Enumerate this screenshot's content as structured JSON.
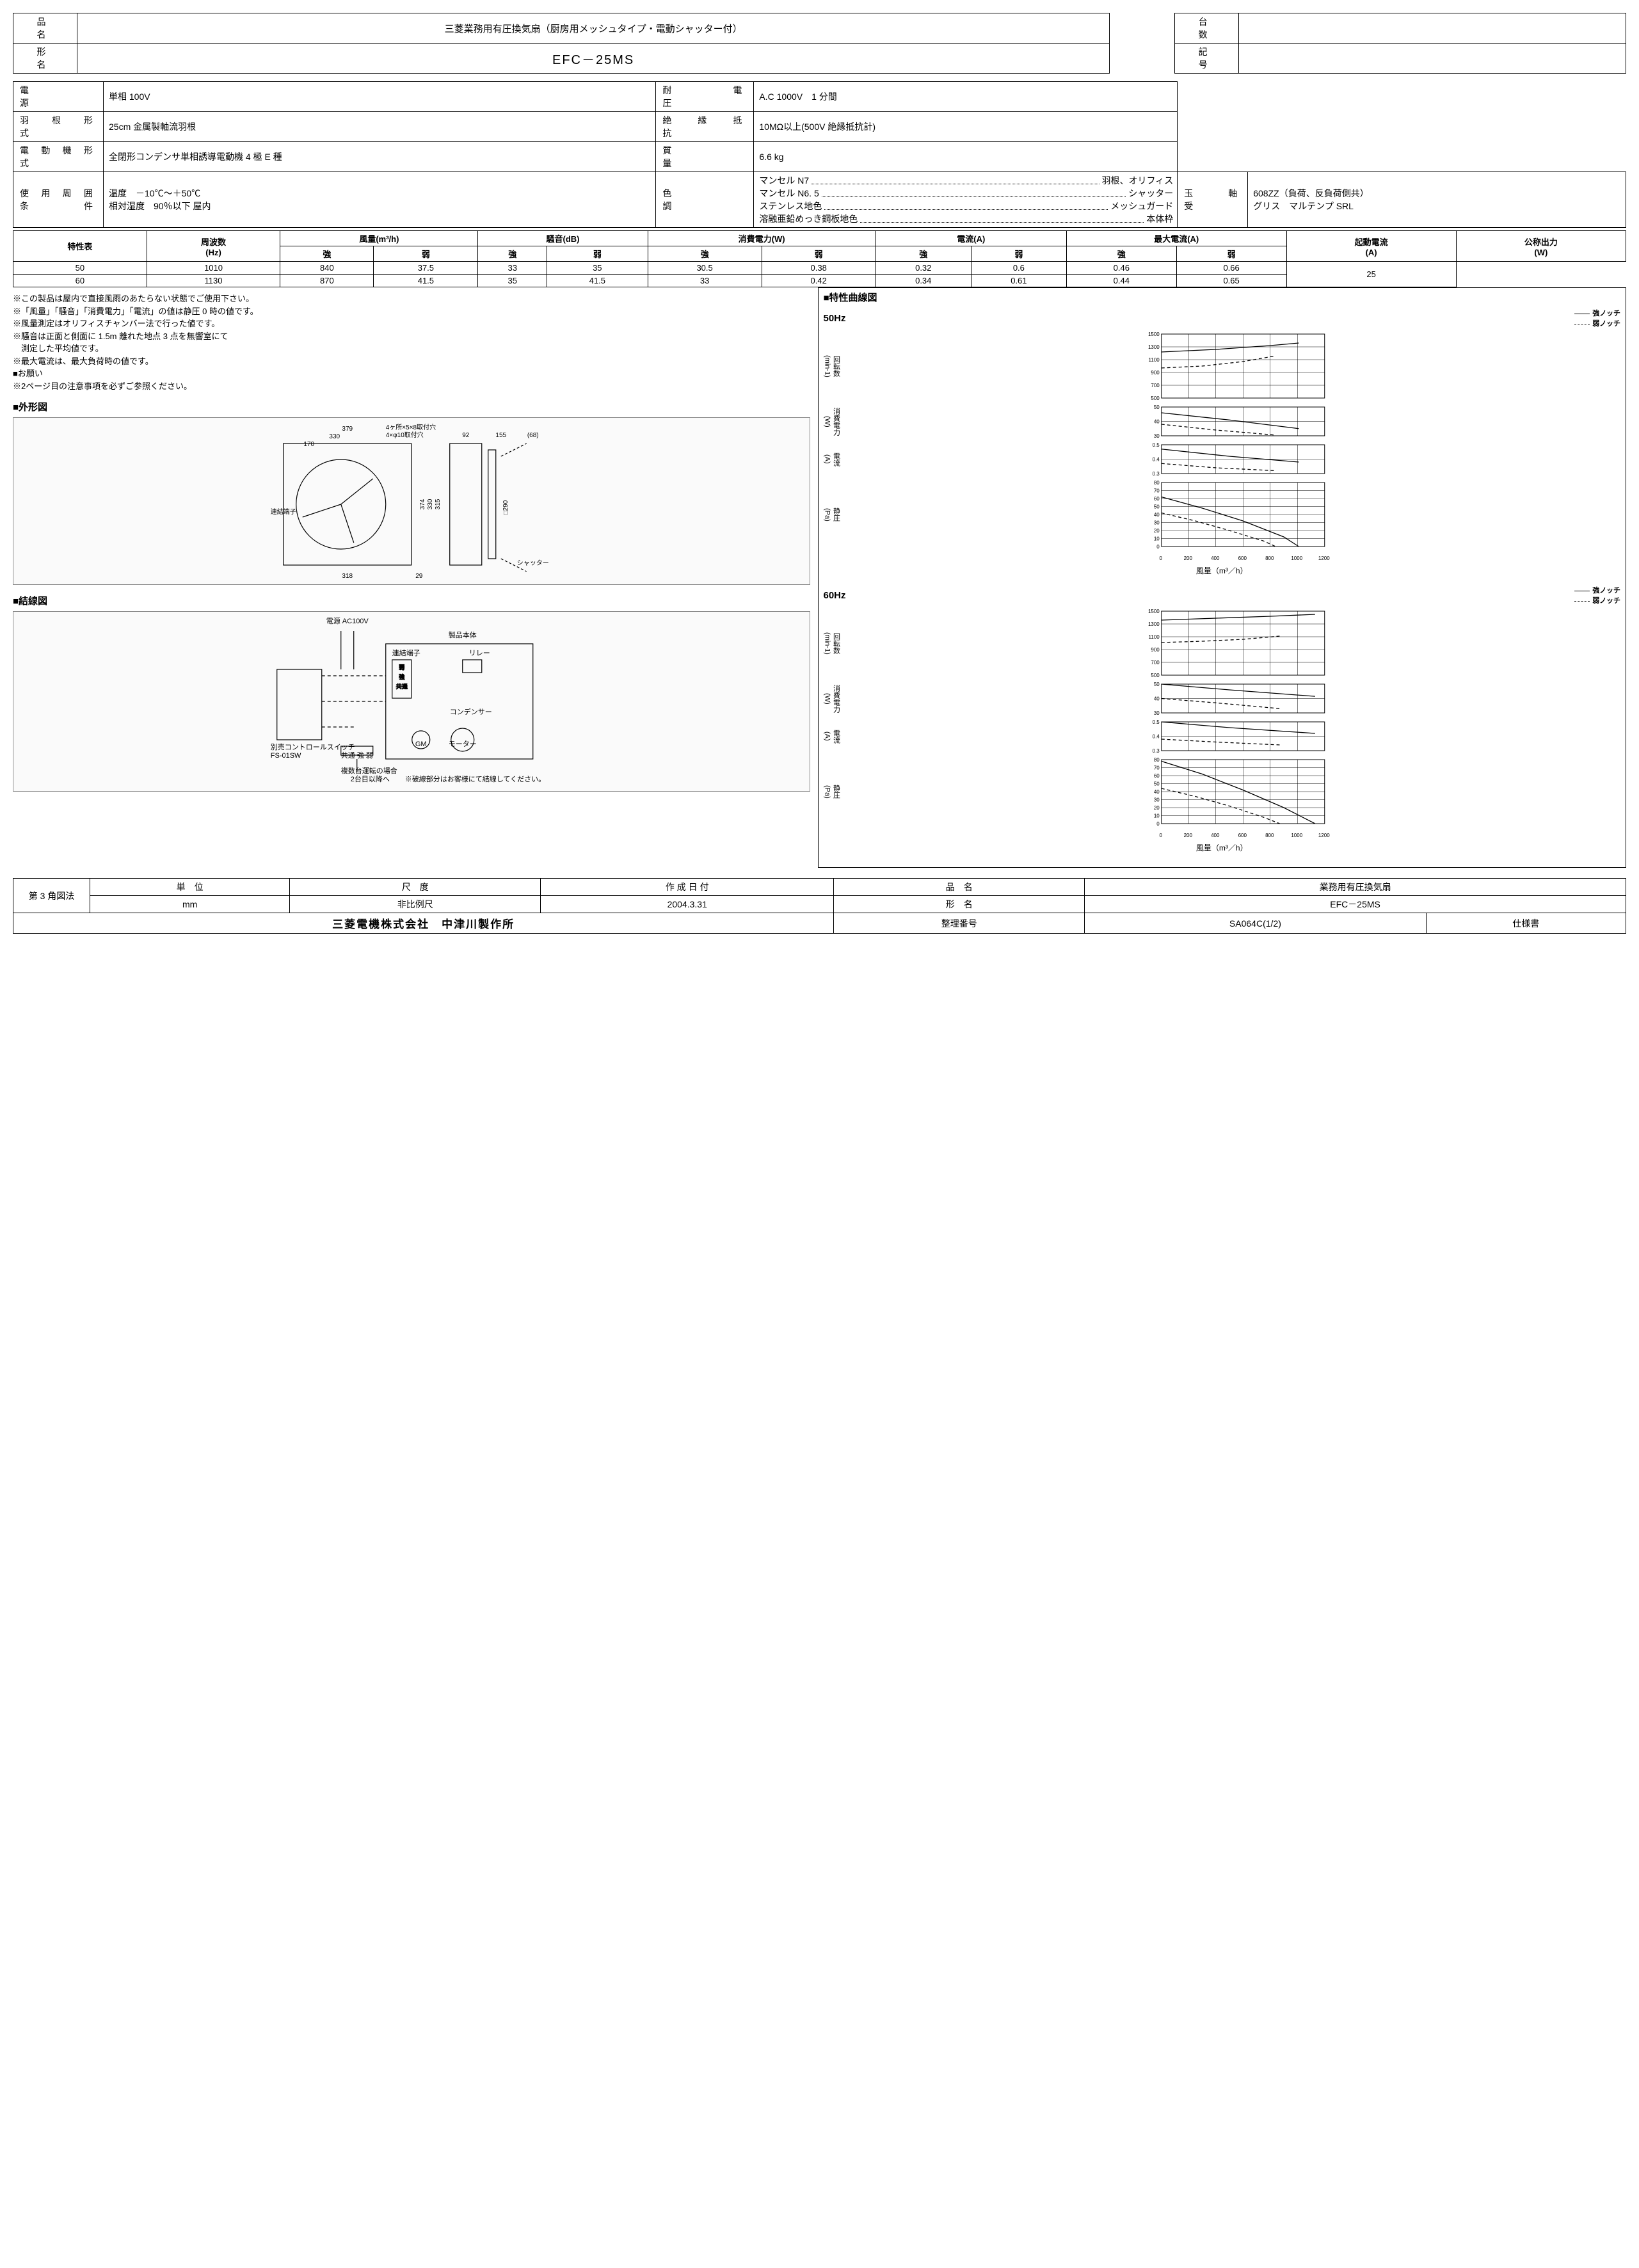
{
  "header": {
    "product_name_label": "品　　名",
    "product_name": "三菱業務用有圧換気扇（厨房用メッシュタイプ・電動シャッター付）",
    "model_label": "形　　名",
    "model": "EFC－25MS",
    "qty_label": "台　　数",
    "qty": "",
    "mark_label": "記　　号",
    "mark": ""
  },
  "specs_left": [
    {
      "k": "電　　　　　源",
      "v": "単相 100V"
    },
    {
      "k": "羽　根　形　式",
      "v": "25cm 金属製軸流羽根"
    },
    {
      "k": "電 動 機 形 式",
      "v": "全閉形コンデンサ単相誘導電動機 4 極 E 種"
    },
    {
      "k": "使 用 周 囲 条 件",
      "v": "温度　－10℃～＋50℃\n相対湿度　90％以下 屋内"
    },
    {
      "k": "玉　軸　　　受",
      "v": "608ZZ（負荷、反負荷側共）\nグリス　マルテンプ SRL"
    }
  ],
  "specs_right": [
    {
      "k": "耐　　電　　圧",
      "v": "A.C 1000V　1 分間"
    },
    {
      "k": "絶　縁　抵　抗",
      "v": "10MΩ以上(500V 絶縁抵抗計)"
    },
    {
      "k": "質　　　　　量",
      "v": "6.6 kg"
    }
  ],
  "color_label": "色　　　　　調",
  "color_lines": [
    {
      "l": "マンセル N7",
      "r": "羽根、オリフィス"
    },
    {
      "l": "マンセル N6. 5",
      "r": "シャッター"
    },
    {
      "l": "ステンレス地色",
      "r": "メッシュガード"
    },
    {
      "l": "溶融亜鉛めっき鋼板地色",
      "r": "本体枠"
    }
  ],
  "perf": {
    "title": "特性表",
    "freq_label": "周波数\n(Hz)",
    "cols": [
      {
        "h": "風量(m³/h)",
        "sub": [
          "強",
          "弱"
        ]
      },
      {
        "h": "騒音(dB)",
        "sub": [
          "強",
          "弱"
        ]
      },
      {
        "h": "消費電力(W)",
        "sub": [
          "強",
          "弱"
        ]
      },
      {
        "h": "電流(A)",
        "sub": [
          "強",
          "弱"
        ]
      },
      {
        "h": "最大電流(A)",
        "sub": [
          "強",
          "弱"
        ]
      }
    ],
    "start_cur_label": "起動電流\n(A)",
    "rated_out_label": "公称出力\n(W)",
    "rows": [
      {
        "hz": "50",
        "vals": [
          "1010",
          "840",
          "37.5",
          "33",
          "35",
          "30.5",
          "0.38",
          "0.32",
          "0.6",
          "0.46"
        ],
        "start": "0.66"
      },
      {
        "hz": "60",
        "vals": [
          "1130",
          "870",
          "41.5",
          "35",
          "41.5",
          "33",
          "0.42",
          "0.34",
          "0.61",
          "0.44"
        ],
        "start": "0.65"
      }
    ],
    "rated_out": "25"
  },
  "notes": [
    "※この製品は屋内で直接風雨のあたらない状態でご使用下さい。",
    "※「風量」「騒音」「消費電力」「電流」の値は静圧 0 時の値です。",
    "※風量測定はオリフィスチャンバー法で行った値です。",
    "※騒音は正面と側面に 1.5m 離れた地点 3 点を無響室にて",
    "　測定した平均値です。",
    "※最大電流は、最大負荷時の値です。",
    "■お願い",
    "※2ページ目の注意事項を必ずご参照ください。"
  ],
  "sections": {
    "outline": "■外形図",
    "wiring": "■結線図",
    "curves": "■特性曲線図"
  },
  "outline_dims": {
    "w_outer": "379",
    "w_330": "330",
    "w_170": "170",
    "w_318": "318",
    "h_374": "374",
    "h_330": "330",
    "h_315": "315",
    "h_29": "29",
    "side_92": "92",
    "side_155": "155",
    "side_68": "(68)",
    "d290": "□290",
    "note1": "4ヶ所×5×8取付穴",
    "note2": "4×φ10取付穴",
    "terminal": "連結端子",
    "shutter": "シャッター"
  },
  "wiring": {
    "power": "電源 AC100V",
    "body": "製品本体",
    "terminal": "連結端子",
    "relay": "リレー",
    "capacitor": "コンデンサー",
    "motor": "モーター",
    "gm": "GM",
    "switch_label": "別売コントロールスイッチ\nFS-01SW",
    "bus": "共通 強 弱",
    "multi": "複数台運転の場合\n2台目以降へ",
    "dashnote": "※破線部分はお客様にて結線してください。",
    "terms": [
      "弱",
      "強",
      "共通"
    ]
  },
  "charts": {
    "legend_strong": "強ノッチ",
    "legend_weak": "弱ノッチ",
    "xaxis": "風量（m³／h）",
    "xlim": [
      0,
      1200
    ],
    "xticks": [
      0,
      200,
      400,
      600,
      800,
      1000,
      1200
    ],
    "groups": [
      {
        "hz": "50Hz",
        "panels": [
          {
            "ylab": "回転数\n(min-1)",
            "ylim": [
              500,
              1500
            ],
            "yticks": [
              500,
              700,
              900,
              1100,
              1300,
              1500
            ],
            "strong": [
              [
                0,
                1220
              ],
              [
                400,
                1260
              ],
              [
                800,
                1320
              ],
              [
                1010,
                1360
              ]
            ],
            "weak": [
              [
                0,
                970
              ],
              [
                300,
                1000
              ],
              [
                600,
                1070
              ],
              [
                840,
                1160
              ]
            ]
          },
          {
            "ylab": "消費電力\n(W)",
            "ylim": [
              30,
              50
            ],
            "yticks": [
              30,
              40,
              50
            ],
            "strong": [
              [
                0,
                46
              ],
              [
                500,
                41
              ],
              [
                1010,
                35
              ]
            ],
            "weak": [
              [
                0,
                38
              ],
              [
                400,
                34
              ],
              [
                840,
                30.5
              ]
            ]
          },
          {
            "ylab": "電流\n(A)",
            "ylim": [
              0.3,
              0.5
            ],
            "yticks": [
              0.3,
              0.4,
              0.5
            ],
            "strong": [
              [
                0,
                0.47
              ],
              [
                500,
                0.42
              ],
              [
                1010,
                0.38
              ]
            ],
            "weak": [
              [
                0,
                0.37
              ],
              [
                400,
                0.34
              ],
              [
                840,
                0.32
              ]
            ]
          },
          {
            "ylab": "静圧\n(Pa)",
            "ylim": [
              0,
              80
            ],
            "yticks": [
              0,
              10,
              20,
              30,
              40,
              50,
              60,
              70,
              80
            ],
            "strong": [
              [
                0,
                62
              ],
              [
                300,
                48
              ],
              [
                600,
                32
              ],
              [
                900,
                12
              ],
              [
                1010,
                0
              ]
            ],
            "weak": [
              [
                0,
                42
              ],
              [
                250,
                32
              ],
              [
                500,
                20
              ],
              [
                750,
                7
              ],
              [
                840,
                0
              ]
            ]
          }
        ]
      },
      {
        "hz": "60Hz",
        "panels": [
          {
            "ylab": "回転数\n(min-1)",
            "ylim": [
              500,
              1500
            ],
            "yticks": [
              500,
              700,
              900,
              1100,
              1300,
              1500
            ],
            "strong": [
              [
                0,
                1360
              ],
              [
                400,
                1390
              ],
              [
                800,
                1420
              ],
              [
                1130,
                1450
              ]
            ],
            "weak": [
              [
                0,
                1010
              ],
              [
                300,
                1030
              ],
              [
                600,
                1060
              ],
              [
                870,
                1110
              ]
            ]
          },
          {
            "ylab": "消費電力\n(W)",
            "ylim": [
              30,
              50
            ],
            "yticks": [
              30,
              40,
              50
            ],
            "strong": [
              [
                0,
                50
              ],
              [
                500,
                46
              ],
              [
                1130,
                41.5
              ]
            ],
            "weak": [
              [
                0,
                40
              ],
              [
                400,
                37
              ],
              [
                870,
                33
              ]
            ]
          },
          {
            "ylab": "電流\n(A)",
            "ylim": [
              0.3,
              0.5
            ],
            "yticks": [
              0.3,
              0.4,
              0.5
            ],
            "strong": [
              [
                0,
                0.5
              ],
              [
                500,
                0.46
              ],
              [
                1130,
                0.42
              ]
            ],
            "weak": [
              [
                0,
                0.38
              ],
              [
                400,
                0.36
              ],
              [
                870,
                0.34
              ]
            ]
          },
          {
            "ylab": "静圧\n(Pa)",
            "ylim": [
              0,
              80
            ],
            "yticks": [
              0,
              10,
              20,
              30,
              40,
              50,
              60,
              70,
              80
            ],
            "strong": [
              [
                0,
                78
              ],
              [
                300,
                62
              ],
              [
                600,
                42
              ],
              [
                900,
                20
              ],
              [
                1130,
                0
              ]
            ],
            "weak": [
              [
                0,
                44
              ],
              [
                250,
                34
              ],
              [
                500,
                22
              ],
              [
                750,
                8
              ],
              [
                870,
                0
              ]
            ]
          }
        ]
      }
    ]
  },
  "footer": {
    "proj": "第 3 角図法",
    "unit_h": "単　位",
    "unit": "mm",
    "scale_h": "尺　度",
    "scale": "非比例尺",
    "date_h": "作 成 日 付",
    "date": "2004.3.31",
    "pn_h": "品　名",
    "pn": "業務用有圧換気扇",
    "mn_h": "形　名",
    "mn": "EFC－25MS",
    "company": "三菱電機株式会社　中津川製作所",
    "docno_h": "整理番号",
    "docno": "SA064C(1/2)",
    "doctype": "仕様書"
  }
}
